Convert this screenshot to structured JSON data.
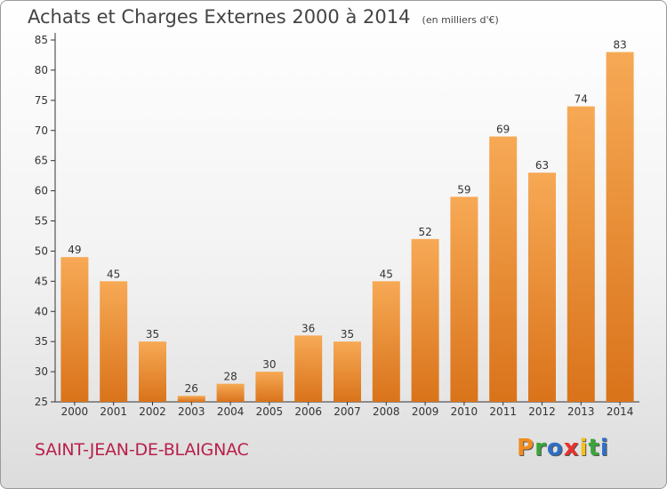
{
  "header": {
    "title": "Achats et Charges Externes 2000 à 2014",
    "unit": "(en milliers d'€)"
  },
  "footer": {
    "commune": "SAINT-JEAN-DE-BLAIGNAC",
    "brand": "Proxiti",
    "brand_colors": [
      "#f28c1e",
      "#3aa63a",
      "#2f6fc4",
      "#e8322e",
      "#f4c21a",
      "#3aa63a",
      "#2f6fc4"
    ]
  },
  "colors": {
    "bar_light": "#f7a955",
    "bar_dark": "#d9731a",
    "axis": "#333333",
    "grid": "#cccccc",
    "label": "#333333"
  },
  "chart_data": {
    "type": "bar",
    "categories": [
      "2000",
      "2001",
      "2002",
      "2003",
      "2004",
      "2005",
      "2006",
      "2007",
      "2008",
      "2009",
      "2010",
      "2011",
      "2012",
      "2013",
      "2014"
    ],
    "values": [
      49,
      45,
      35,
      26,
      28,
      30,
      36,
      35,
      45,
      52,
      59,
      69,
      63,
      74,
      83
    ],
    "title": "Achats et Charges Externes 2000 à 2014",
    "ylim": [
      25,
      85
    ],
    "yticks": [
      25,
      30,
      35,
      40,
      45,
      50,
      55,
      60,
      65,
      70,
      75,
      80,
      85
    ],
    "grid": false,
    "data_labels": true
  }
}
